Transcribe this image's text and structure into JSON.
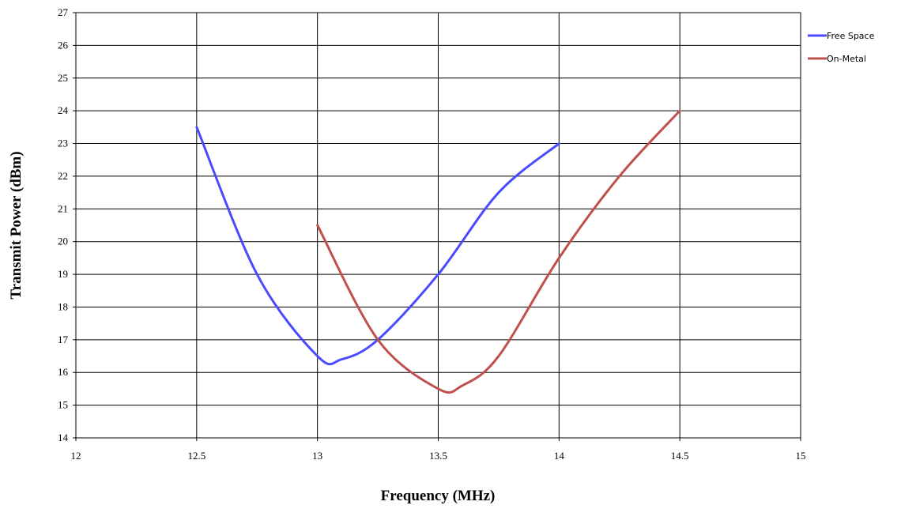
{
  "chart_data": {
    "type": "line",
    "title": "",
    "xlabel": "Frequency (MHz)",
    "ylabel": "Transmit Power (dBm)",
    "xlim": [
      12,
      15
    ],
    "ylim": [
      14,
      27
    ],
    "x_ticks": [
      "12",
      "12.5",
      "13",
      "13.5",
      "14",
      "14.5",
      "15"
    ],
    "y_ticks": [
      "14",
      "15",
      "16",
      "17",
      "18",
      "19",
      "20",
      "21",
      "22",
      "23",
      "24",
      "25",
      "26",
      "27"
    ],
    "grid": true,
    "legend_position": "top-right",
    "series": [
      {
        "name": "Free Space",
        "color": "#4a4aff",
        "x": [
          12.5,
          12.75,
          13,
          13.1,
          13.25,
          13.5,
          13.75,
          14
        ],
        "y": [
          23.5,
          19.0,
          16.5,
          16.4,
          17.0,
          19.0,
          21.5,
          23.0
        ]
      },
      {
        "name": "On-Metal",
        "color": "#c0504d",
        "x": [
          13,
          13.25,
          13.5,
          13.6,
          13.75,
          14,
          14.25,
          14.5
        ],
        "y": [
          20.5,
          17.0,
          15.5,
          15.6,
          16.5,
          19.5,
          22.0,
          24.0
        ]
      }
    ]
  }
}
